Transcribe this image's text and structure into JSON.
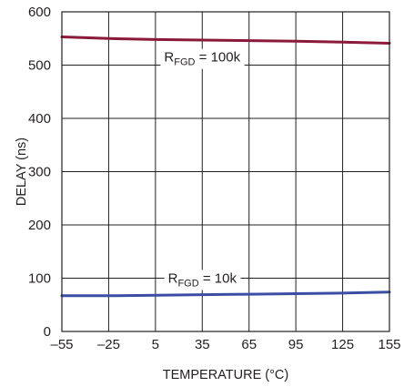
{
  "chart_data": {
    "type": "line",
    "title": "",
    "xlabel": "TEMPERATURE (°C)",
    "ylabel": "DELAY (ns)",
    "xlim": [
      -55,
      155
    ],
    "ylim": [
      0,
      600
    ],
    "x_ticks": [
      -55,
      -25,
      5,
      35,
      65,
      95,
      125,
      155
    ],
    "x_tick_labels": [
      "–55",
      "–25",
      "5",
      "35",
      "65",
      "95",
      "125",
      "155"
    ],
    "y_ticks": [
      0,
      100,
      200,
      300,
      400,
      500,
      600
    ],
    "y_tick_labels": [
      "0",
      "100",
      "200",
      "300",
      "400",
      "500",
      "600"
    ],
    "grid": true,
    "legend": "none",
    "series": [
      {
        "color": "#8b1a3a",
        "x": [
          -55,
          -25,
          5,
          35,
          65,
          95,
          125,
          155
        ],
        "y": [
          553,
          550,
          548,
          547,
          546,
          545,
          543,
          541
        ]
      },
      {
        "color": "#3a4fa3",
        "x": [
          -55,
          -25,
          5,
          35,
          65,
          95,
          125,
          155
        ],
        "y": [
          67,
          67,
          68,
          69,
          70,
          71,
          72,
          74
        ]
      }
    ],
    "annotations": [
      {
        "series": 0,
        "main": "R",
        "sub": "FGD",
        "rest": " = 100k",
        "x": 35,
        "y": 515
      },
      {
        "series": 1,
        "main": "R",
        "sub": "FGD",
        "rest": " = 10k",
        "x": 35,
        "y": 100
      }
    ]
  }
}
